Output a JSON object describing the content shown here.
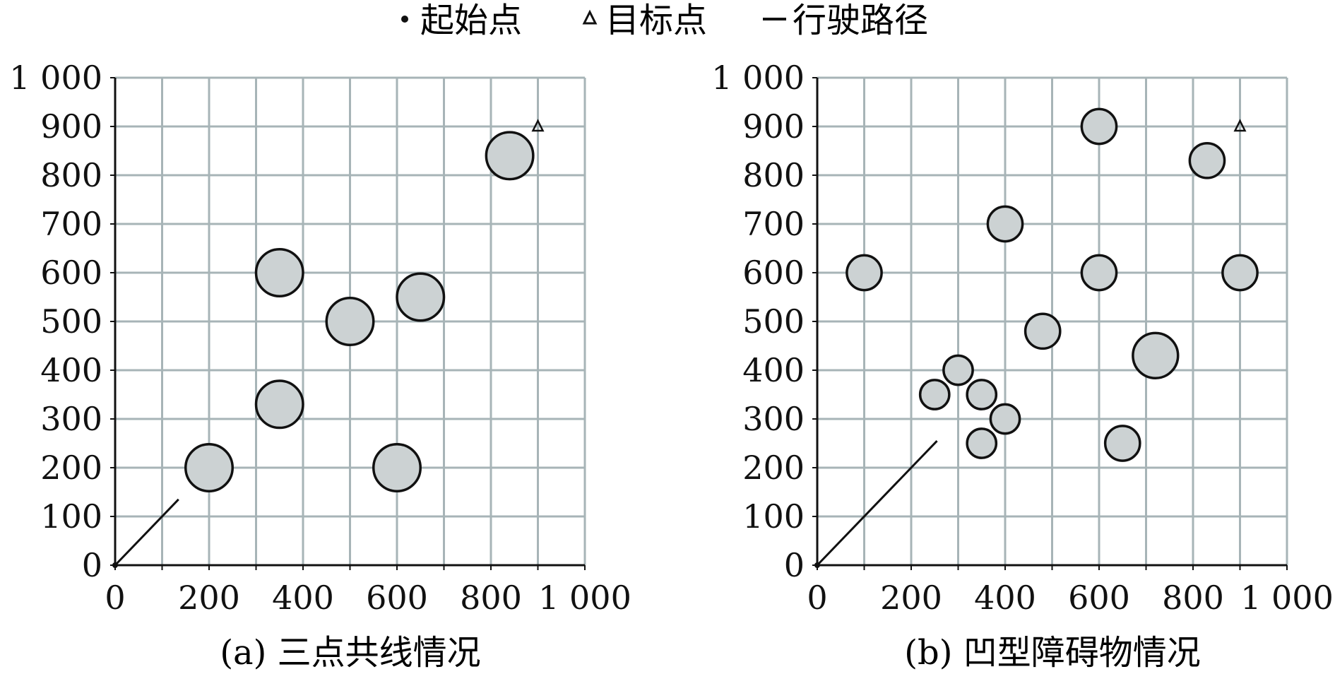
{
  "legend": {
    "start": "起始点",
    "target": "目标点",
    "path": "行驶路径"
  },
  "colors": {
    "grid": "#a7b4b7",
    "axis": "#111111",
    "obstacle_fill": "#ccd2d3",
    "obstacle_stroke": "#111111",
    "path": "#111111",
    "text": "#111111"
  },
  "chart_data": [
    {
      "type": "scatter",
      "title": "",
      "caption": "(a) 三点共线情况",
      "xlabel": "",
      "ylabel": "",
      "xlim": [
        0,
        1000
      ],
      "ylim": [
        0,
        1000
      ],
      "grid": true,
      "x_ticks": [
        0,
        200,
        400,
        600,
        800,
        1000
      ],
      "x_tick_labels": [
        "0",
        "200",
        "400",
        "600",
        "800",
        "1 000"
      ],
      "y_ticks": [
        0,
        100,
        200,
        300,
        400,
        500,
        600,
        700,
        800,
        900,
        1000
      ],
      "y_tick_labels": [
        "0",
        "100",
        "200",
        "300",
        "400",
        "500",
        "600",
        "700",
        "800",
        "900",
        "1 000"
      ],
      "start": {
        "x": 0,
        "y": 0
      },
      "target": {
        "x": 900,
        "y": 900
      },
      "path": [
        [
          0,
          0
        ],
        [
          135,
          135
        ]
      ],
      "obstacles": [
        {
          "x": 200,
          "y": 200,
          "r": 50
        },
        {
          "x": 350,
          "y": 600,
          "r": 50
        },
        {
          "x": 350,
          "y": 330,
          "r": 50
        },
        {
          "x": 500,
          "y": 500,
          "r": 50
        },
        {
          "x": 650,
          "y": 550,
          "r": 50
        },
        {
          "x": 600,
          "y": 200,
          "r": 50
        },
        {
          "x": 840,
          "y": 840,
          "r": 50
        }
      ]
    },
    {
      "type": "scatter",
      "title": "",
      "caption": "(b) 凹型障碍物情况",
      "xlabel": "",
      "ylabel": "",
      "xlim": [
        0,
        1000
      ],
      "ylim": [
        0,
        1000
      ],
      "grid": true,
      "x_ticks": [
        0,
        200,
        400,
        600,
        800,
        1000
      ],
      "x_tick_labels": [
        "0",
        "200",
        "400",
        "600",
        "800",
        "1 000"
      ],
      "y_ticks": [
        0,
        100,
        200,
        300,
        400,
        500,
        600,
        700,
        800,
        900,
        1000
      ],
      "y_tick_labels": [
        "0",
        "100",
        "200",
        "300",
        "400",
        "500",
        "600",
        "700",
        "800",
        "900",
        "1 000"
      ],
      "start": {
        "x": 0,
        "y": 0
      },
      "target": {
        "x": 900,
        "y": 900
      },
      "path": [
        [
          0,
          0
        ],
        [
          255,
          255
        ]
      ],
      "obstacles": [
        {
          "x": 100,
          "y": 600,
          "r": 37
        },
        {
          "x": 600,
          "y": 900,
          "r": 37
        },
        {
          "x": 400,
          "y": 700,
          "r": 37
        },
        {
          "x": 600,
          "y": 600,
          "r": 37
        },
        {
          "x": 900,
          "y": 600,
          "r": 37
        },
        {
          "x": 830,
          "y": 830,
          "r": 37
        },
        {
          "x": 480,
          "y": 480,
          "r": 37
        },
        {
          "x": 720,
          "y": 430,
          "r": 48
        },
        {
          "x": 300,
          "y": 400,
          "r": 31
        },
        {
          "x": 250,
          "y": 350,
          "r": 31
        },
        {
          "x": 350,
          "y": 350,
          "r": 31
        },
        {
          "x": 400,
          "y": 300,
          "r": 31
        },
        {
          "x": 350,
          "y": 250,
          "r": 31
        },
        {
          "x": 650,
          "y": 250,
          "r": 37
        }
      ]
    }
  ]
}
